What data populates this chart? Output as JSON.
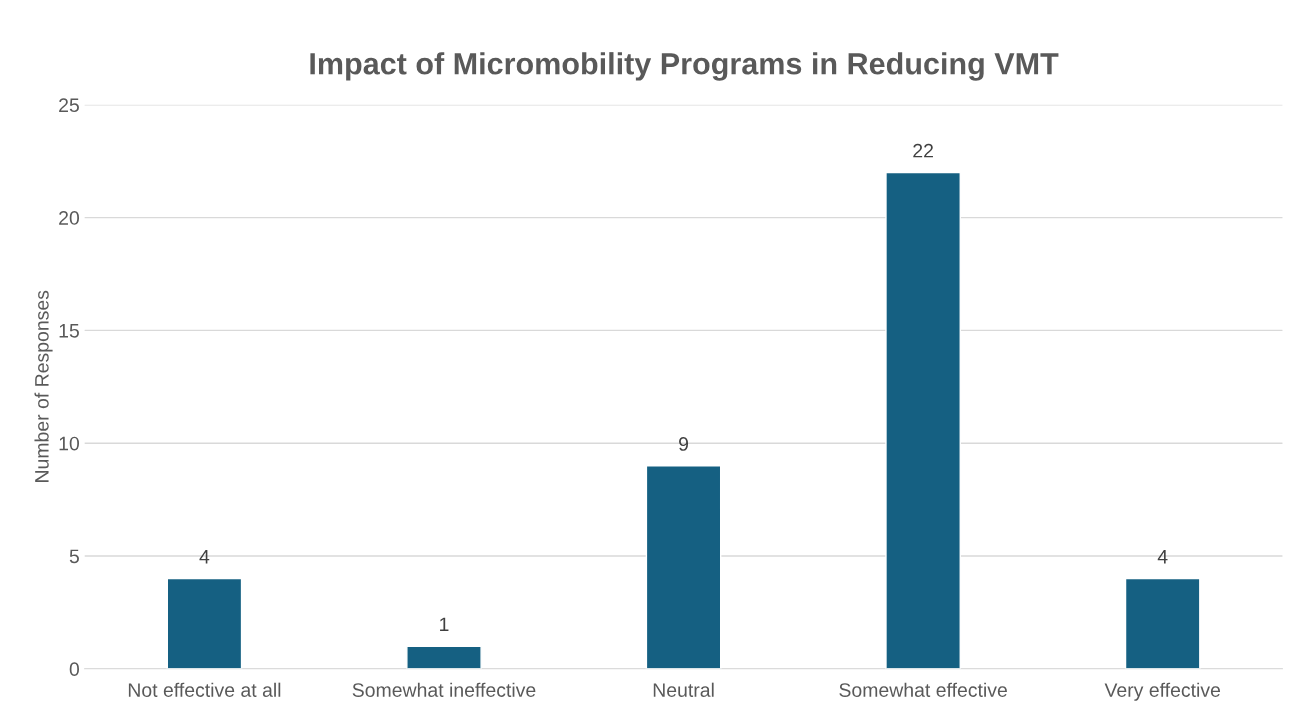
{
  "chart_data": {
    "type": "bar",
    "title": "Impact of Micromobility Programs in Reducing VMT",
    "ylabel": "Number of Responses",
    "categories": [
      "Not effective at all",
      "Somewhat ineffective",
      "Neutral",
      "Somewhat effective",
      "Very effective"
    ],
    "values": [
      4,
      1,
      9,
      22,
      4
    ],
    "color": "#156082",
    "ylim": [
      0,
      25
    ],
    "yticks": [
      0,
      5,
      10,
      15,
      20,
      25
    ],
    "grid": "y",
    "data_labels": true,
    "legend": false
  }
}
